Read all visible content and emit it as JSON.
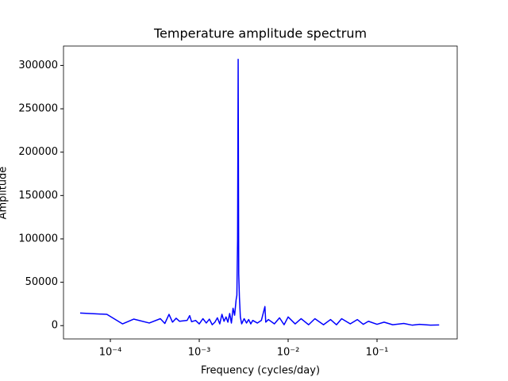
{
  "chart_data": {
    "type": "line",
    "title": "Temperature amplitude spectrum",
    "xlabel": "Frequency (cycles/day)",
    "ylabel": "Amplitude",
    "xscale": "log",
    "x": [
      4.57e-05,
      9.13e-05,
      0.000137,
      0.000183,
      0.000274,
      0.000365,
      0.00041,
      0.000457,
      0.0005,
      0.00055,
      0.0006,
      0.00073,
      0.00078,
      0.00082,
      0.00091,
      0.001,
      0.0011,
      0.0012,
      0.0013,
      0.0014,
      0.0015,
      0.0016,
      0.0017,
      0.0018,
      0.0019,
      0.002,
      0.0021,
      0.0022,
      0.0023,
      0.0024,
      0.0025,
      0.0026,
      0.00265,
      0.0027,
      0.00274,
      0.00278,
      0.00283,
      0.0029,
      0.003,
      0.0032,
      0.0034,
      0.0036,
      0.0038,
      0.004,
      0.0045,
      0.005,
      0.00548,
      0.0056,
      0.006,
      0.007,
      0.008,
      0.009,
      0.01,
      0.012,
      0.014,
      0.017,
      0.02,
      0.025,
      0.03,
      0.035,
      0.04,
      0.05,
      0.06,
      0.07,
      0.08,
      0.1,
      0.12,
      0.15,
      0.2,
      0.25,
      0.3,
      0.4,
      0.5
    ],
    "series": [
      {
        "color": "#0000ff",
        "values": [
          14500,
          13000,
          2000,
          7500,
          3000,
          8000,
          2500,
          13000,
          4000,
          8500,
          5000,
          6000,
          11500,
          4500,
          6000,
          2000,
          8000,
          3000,
          7500,
          1000,
          4000,
          9000,
          2000,
          13000,
          5000,
          10000,
          4000,
          14000,
          3000,
          20000,
          12000,
          30000,
          35000,
          100000,
          307000,
          60000,
          33000,
          10000,
          2000,
          8000,
          3000,
          7000,
          2000,
          6000,
          3000,
          6000,
          22000,
          4000,
          7000,
          2000,
          9000,
          1000,
          10000,
          2000,
          8000,
          1000,
          8000,
          1000,
          7000,
          1000,
          8000,
          2000,
          7000,
          1500,
          5000,
          1500,
          4000,
          1000,
          2500,
          500,
          1500,
          500,
          800
        ]
      }
    ],
    "xlim": [
      2.97e-05,
      0.798
    ],
    "ylim": [
      -15350,
      322350
    ],
    "xticks": [
      {
        "value": 0.0001,
        "label": "10⁻⁴"
      },
      {
        "value": 0.001,
        "label": "10⁻³"
      },
      {
        "value": 0.01,
        "label": "10⁻²"
      },
      {
        "value": 0.1,
        "label": "10⁻¹"
      }
    ],
    "yticks": [
      0,
      50000,
      100000,
      150000,
      200000,
      250000,
      300000
    ]
  }
}
